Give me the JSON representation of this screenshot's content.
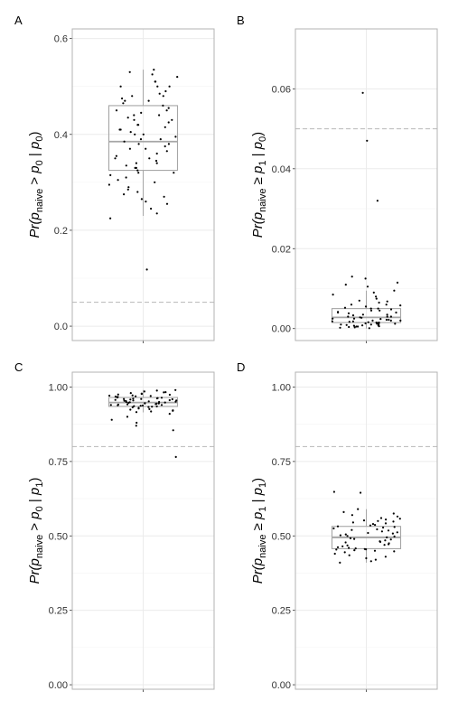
{
  "chart_data": [
    {
      "panel_label": "A",
      "type": "box",
      "ylabel": {
        "pre": "Pr(",
        "hat": "p",
        "sub": "naive",
        "rel": " > ",
        "p1": "p",
        "p1sub": "0",
        "bar": " | ",
        "p2": "p",
        "p2sub": "0",
        "post": ")"
      },
      "ylim": [
        -0.03,
        0.62
      ],
      "yticks": [
        0.0,
        0.2,
        0.4,
        0.6
      ],
      "ytick_labels": [
        "0.0",
        "0.2",
        "0.4",
        "0.6"
      ],
      "reference_line": 0.05,
      "box": {
        "min": 0.23,
        "q1": 0.325,
        "median": 0.385,
        "q3": 0.46,
        "max": 0.535
      },
      "outliers": [
        0.118
      ],
      "points": [
        0.535,
        0.53,
        0.525,
        0.52,
        0.51,
        0.51,
        0.5,
        0.5,
        0.5,
        0.49,
        0.485,
        0.48,
        0.48,
        0.475,
        0.47,
        0.47,
        0.465,
        0.46,
        0.455,
        0.45,
        0.45,
        0.445,
        0.44,
        0.44,
        0.435,
        0.43,
        0.43,
        0.425,
        0.42,
        0.42,
        0.415,
        0.41,
        0.41,
        0.405,
        0.4,
        0.4,
        0.395,
        0.39,
        0.39,
        0.385,
        0.38,
        0.38,
        0.375,
        0.37,
        0.37,
        0.365,
        0.36,
        0.355,
        0.35,
        0.35,
        0.345,
        0.34,
        0.34,
        0.335,
        0.33,
        0.33,
        0.325,
        0.32,
        0.32,
        0.315,
        0.31,
        0.305,
        0.3,
        0.295,
        0.29,
        0.285,
        0.28,
        0.275,
        0.27,
        0.265,
        0.26,
        0.255,
        0.245,
        0.235,
        0.225,
        0.118
      ],
      "grid": true
    },
    {
      "panel_label": "B",
      "type": "box",
      "ylabel": {
        "pre": "Pr(",
        "hat": "p",
        "sub": "naive",
        "rel": " ≥ ",
        "p1": "p",
        "p1sub": "1",
        "bar": " | ",
        "p2": "p",
        "p2sub": "0",
        "post": ")"
      },
      "ylim": [
        -0.003,
        0.075
      ],
      "yticks": [
        0.0,
        0.02,
        0.04,
        0.06
      ],
      "ytick_labels": [
        "0.00",
        "0.02",
        "0.04",
        "0.06"
      ],
      "reference_line": 0.05,
      "box": {
        "min": 0.0,
        "q1": 0.0015,
        "median": 0.0028,
        "q3": 0.005,
        "max": 0.0095
      },
      "outliers": [
        0.059,
        0.047,
        0.032,
        0.013,
        0.0125,
        0.0115,
        0.011,
        0.0105
      ],
      "points": [
        0.059,
        0.047,
        0.032,
        0.013,
        0.0125,
        0.0115,
        0.011,
        0.0105,
        0.0095,
        0.009,
        0.0085,
        0.008,
        0.0075,
        0.007,
        0.0068,
        0.0065,
        0.006,
        0.006,
        0.0058,
        0.0055,
        0.0052,
        0.005,
        0.005,
        0.0048,
        0.0045,
        0.0045,
        0.0042,
        0.004,
        0.004,
        0.0038,
        0.0035,
        0.0035,
        0.0033,
        0.003,
        0.003,
        0.003,
        0.0028,
        0.0027,
        0.0025,
        0.0025,
        0.0024,
        0.0022,
        0.0022,
        0.002,
        0.002,
        0.002,
        0.0018,
        0.0018,
        0.0017,
        0.0016,
        0.0015,
        0.0015,
        0.0014,
        0.0013,
        0.0012,
        0.0012,
        0.0011,
        0.001,
        0.001,
        0.0009,
        0.0008,
        0.0008,
        0.0007,
        0.0006,
        0.0005,
        0.0005,
        0.0004,
        0.0003,
        0.0002,
        0.0001
      ],
      "grid": true
    },
    {
      "panel_label": "C",
      "type": "box",
      "ylabel": {
        "pre": "Pr(",
        "hat": "p",
        "sub": "naive",
        "rel": " > ",
        "p1": "p",
        "p1sub": "0",
        "bar": " | ",
        "p2": "p",
        "p2sub": "1",
        "post": ")"
      },
      "ylim": [
        -0.015,
        1.05
      ],
      "yticks": [
        0.0,
        0.25,
        0.5,
        0.75,
        1.0
      ],
      "ytick_labels": [
        "0.00",
        "0.25",
        "0.50",
        "0.75",
        "1.00"
      ],
      "reference_line": 0.8,
      "box": {
        "min": 0.915,
        "q1": 0.935,
        "median": 0.948,
        "q3": 0.965,
        "max": 0.99
      },
      "outliers": [
        0.91,
        0.9,
        0.89,
        0.88,
        0.87,
        0.855,
        0.765
      ],
      "points": [
        0.99,
        0.988,
        0.985,
        0.983,
        0.982,
        0.98,
        0.978,
        0.977,
        0.975,
        0.974,
        0.972,
        0.971,
        0.97,
        0.969,
        0.968,
        0.967,
        0.966,
        0.965,
        0.964,
        0.963,
        0.962,
        0.961,
        0.96,
        0.96,
        0.959,
        0.958,
        0.957,
        0.956,
        0.955,
        0.955,
        0.954,
        0.953,
        0.952,
        0.951,
        0.95,
        0.95,
        0.949,
        0.948,
        0.947,
        0.946,
        0.945,
        0.945,
        0.944,
        0.943,
        0.942,
        0.941,
        0.94,
        0.94,
        0.939,
        0.938,
        0.937,
        0.936,
        0.935,
        0.934,
        0.933,
        0.932,
        0.93,
        0.928,
        0.926,
        0.924,
        0.922,
        0.92,
        0.918,
        0.916,
        0.91,
        0.9,
        0.89,
        0.88,
        0.87,
        0.855,
        0.765
      ],
      "grid": true
    },
    {
      "panel_label": "D",
      "type": "box",
      "ylabel": {
        "pre": "Pr(",
        "hat": "p",
        "sub": "naive",
        "rel": " ≥ ",
        "p1": "p",
        "p1sub": "1",
        "bar": " | ",
        "p2": "p",
        "p2sub": "1",
        "post": ")"
      },
      "ylim": [
        -0.015,
        1.05
      ],
      "yticks": [
        0.0,
        0.25,
        0.5,
        0.75,
        1.0
      ],
      "ytick_labels": [
        "0.00",
        "0.25",
        "0.50",
        "0.75",
        "1.00"
      ],
      "reference_line": 0.8,
      "box": {
        "min": 0.41,
        "q1": 0.457,
        "median": 0.495,
        "q3": 0.532,
        "max": 0.59
      },
      "outliers": [
        0.648,
        0.645
      ],
      "points": [
        0.648,
        0.645,
        0.59,
        0.58,
        0.575,
        0.57,
        0.565,
        0.56,
        0.558,
        0.555,
        0.552,
        0.55,
        0.548,
        0.545,
        0.542,
        0.54,
        0.537,
        0.535,
        0.532,
        0.53,
        0.528,
        0.525,
        0.522,
        0.52,
        0.518,
        0.515,
        0.512,
        0.51,
        0.508,
        0.505,
        0.502,
        0.5,
        0.498,
        0.495,
        0.492,
        0.49,
        0.488,
        0.485,
        0.482,
        0.48,
        0.478,
        0.475,
        0.472,
        0.47,
        0.468,
        0.465,
        0.462,
        0.46,
        0.458,
        0.456,
        0.455,
        0.454,
        0.452,
        0.45,
        0.448,
        0.445,
        0.44,
        0.435,
        0.43,
        0.425,
        0.42,
        0.415,
        0.41
      ],
      "grid": true
    }
  ],
  "style": {
    "box_color": "#a6a6a6",
    "point_color": "#000000",
    "grid_color": "#ebebeb",
    "reference_color": "#bfbfbf",
    "panel_border_color": "#b3b3b3",
    "tick_label_color": "#333333"
  }
}
